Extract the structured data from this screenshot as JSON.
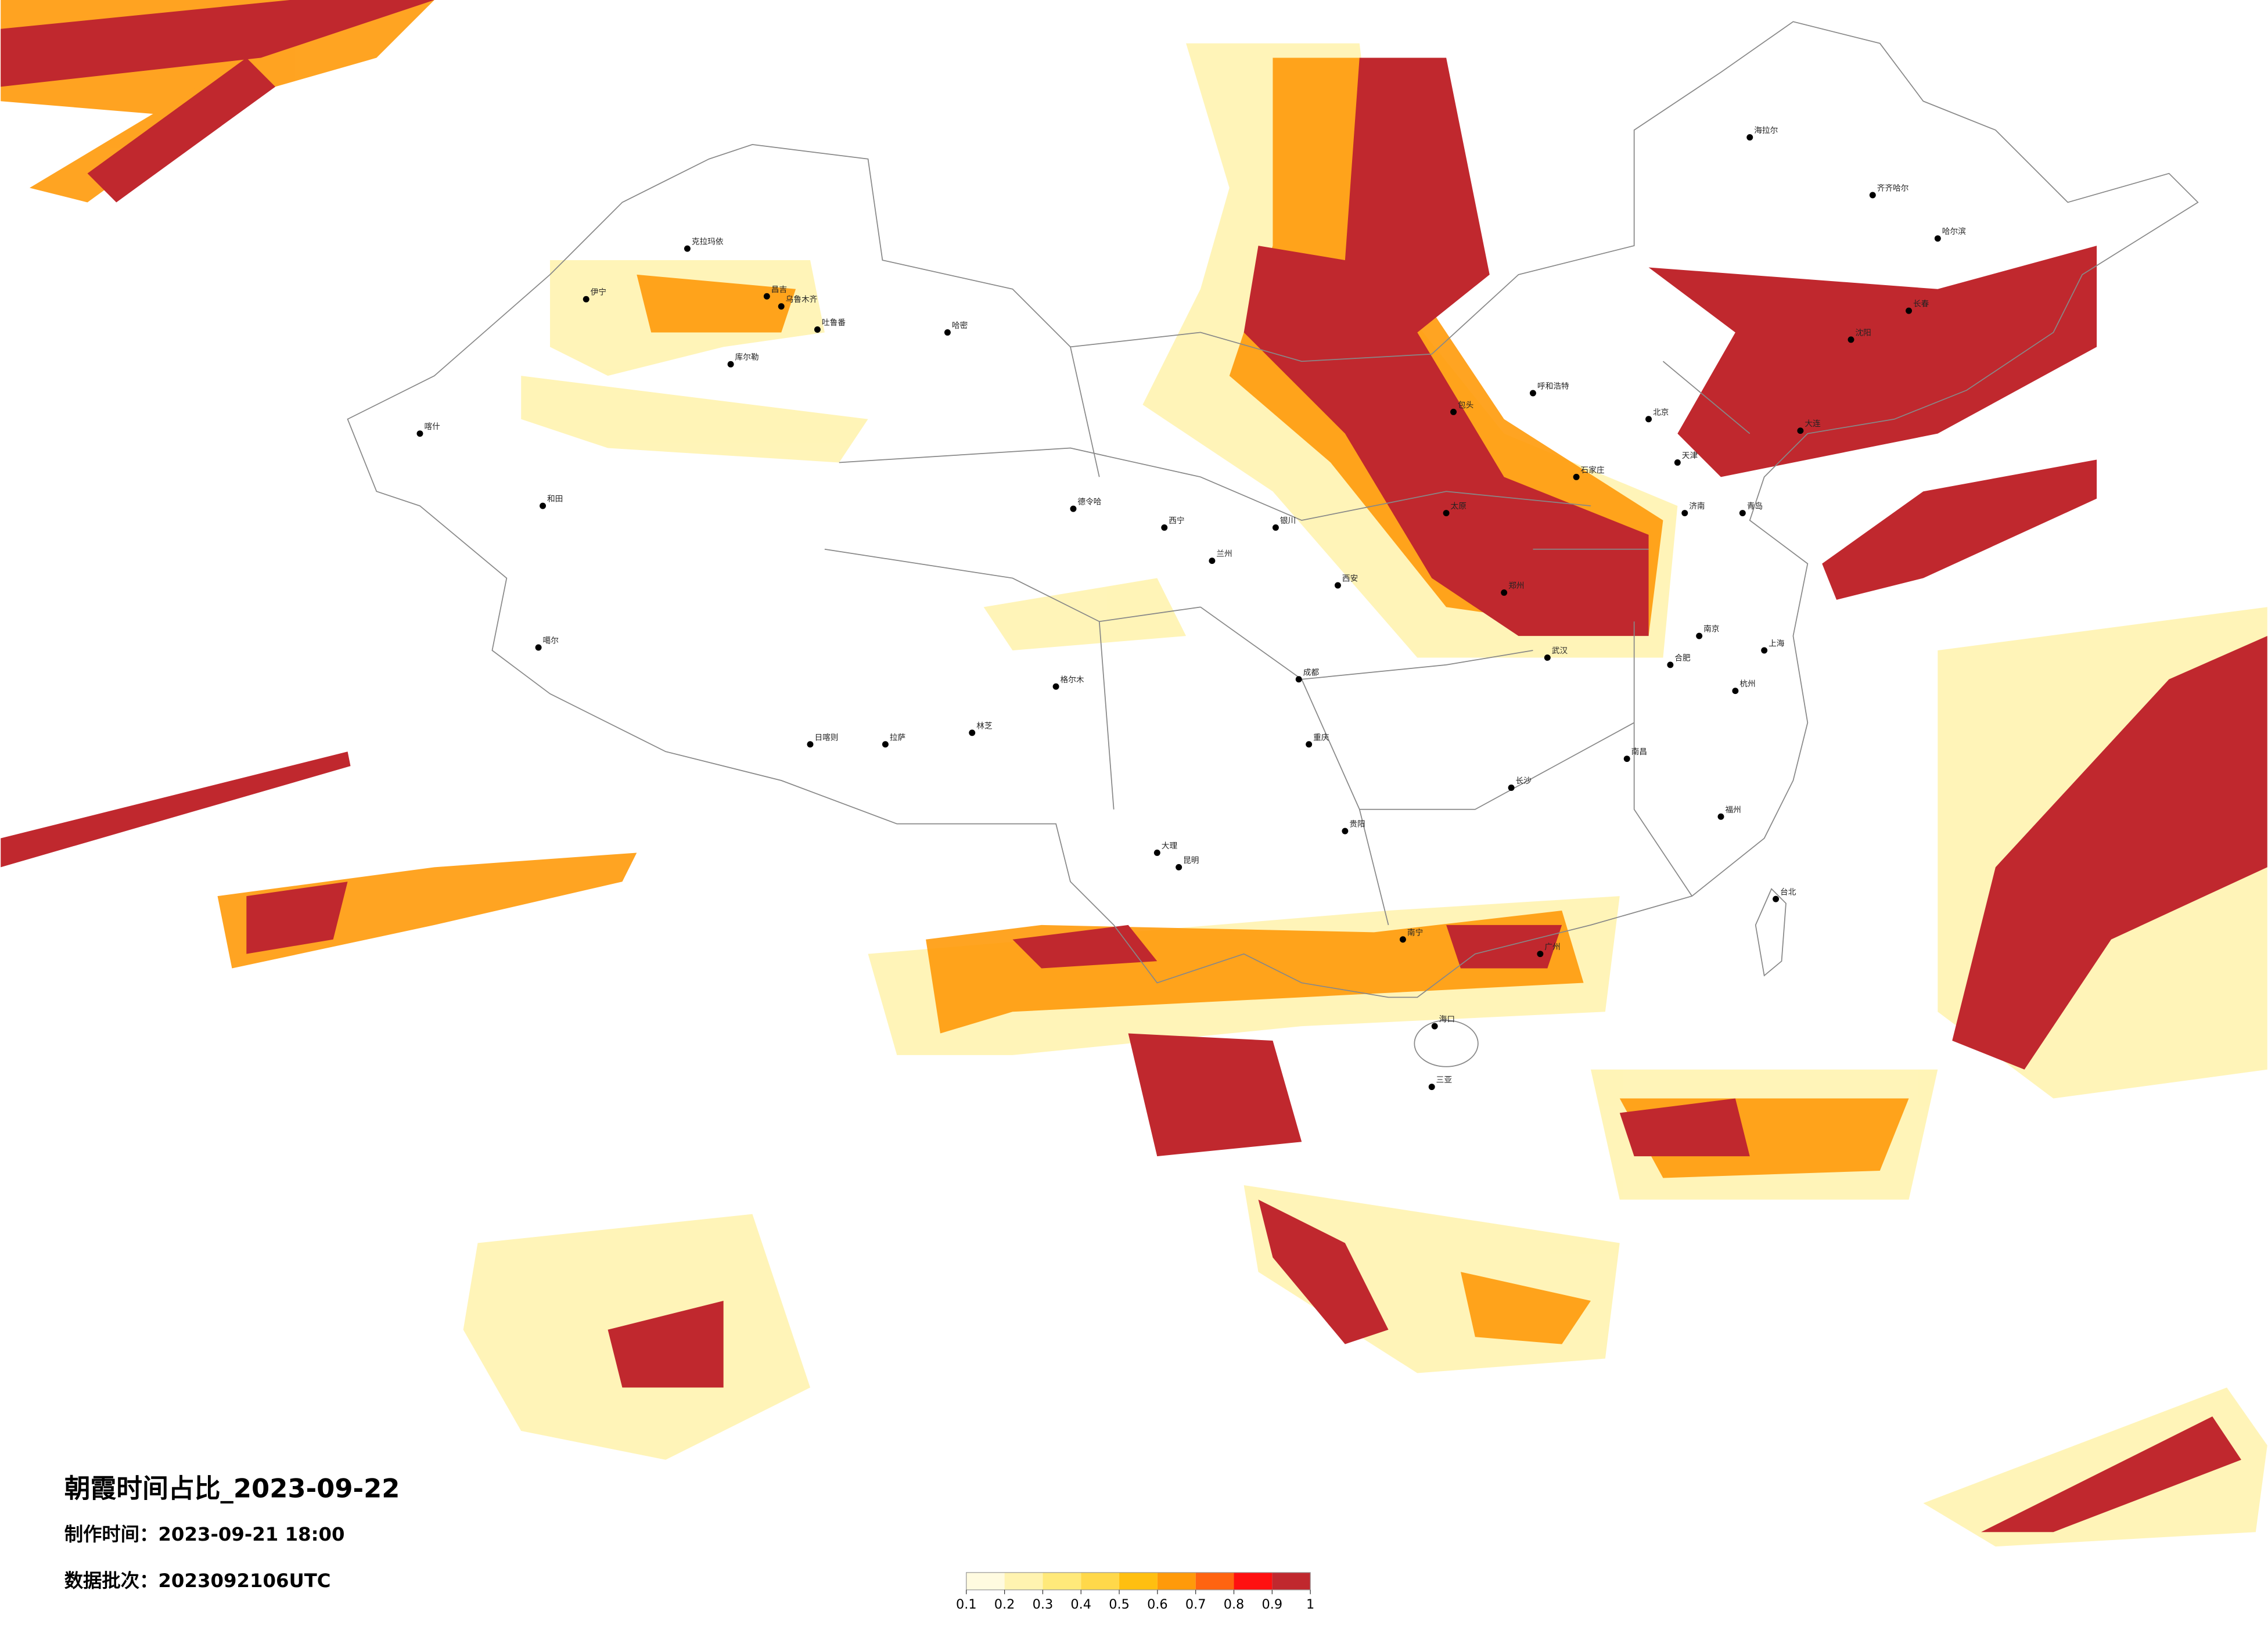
{
  "title": "朝霞时间占比_2023-09-22",
  "made_time": "制作时间：2023-09-21 18:00",
  "batch": "数据批次：2023092106UTC",
  "colorbar": {
    "ticks": [
      0.1,
      0.2,
      0.3,
      0.4,
      0.5,
      0.6,
      0.7,
      0.8,
      0.9,
      1
    ],
    "colors": [
      "#fffbe0",
      "#fff3b0",
      "#ffe97a",
      "#ffd84a",
      "#ffbf10",
      "#ff9a0a",
      "#ff6410",
      "#ff1010",
      "#c0282e"
    ]
  },
  "cities": [
    "克拉玛依",
    "伊宁",
    "昌吉",
    "乌鲁木齐",
    "吐鲁番",
    "哈密",
    "库尔勒",
    "喀什",
    "和田",
    "噶尔",
    "日喀则",
    "拉萨",
    "林芝",
    "格尔木",
    "德令哈",
    "西宁",
    "兰州",
    "银川",
    "呼和浩特",
    "包头",
    "北京",
    "天津",
    "石家庄",
    "太原",
    "济南",
    "青岛",
    "郑州",
    "西安",
    "武汉",
    "南京",
    "上海",
    "杭州",
    "合肥",
    "成都",
    "重庆",
    "贵阳",
    "昆明",
    "长沙",
    "南昌",
    "福州",
    "广州",
    "南宁",
    "海口",
    "三亚",
    "沈阳",
    "长春",
    "哈尔滨",
    "大连",
    "海拉尔",
    "齐齐哈尔",
    "台北",
    "大理"
  ]
}
